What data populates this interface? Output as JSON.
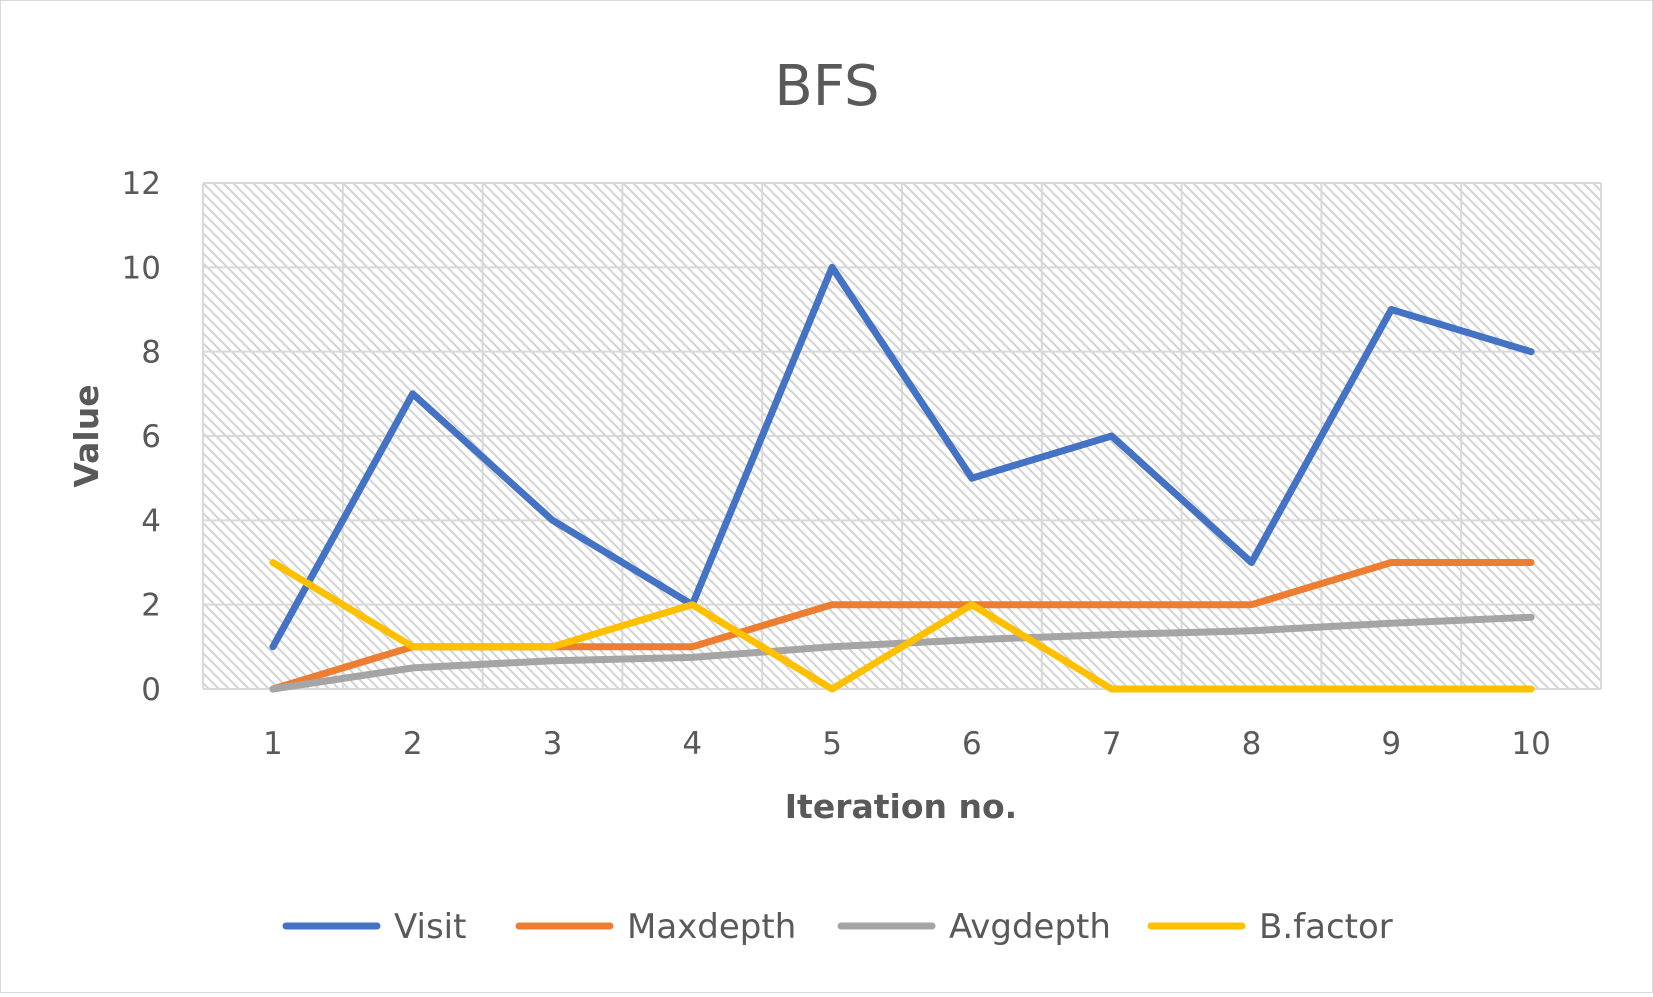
{
  "chart_data": {
    "type": "line",
    "title": "BFS",
    "xlabel": "Iteration no.",
    "ylabel": "Value",
    "categories": [
      "1",
      "2",
      "3",
      "4",
      "5",
      "6",
      "7",
      "8",
      "9",
      "10"
    ],
    "ylim": [
      0,
      12
    ],
    "yticks": [
      "0",
      "2",
      "4",
      "6",
      "8",
      "10",
      "12"
    ],
    "grid": true,
    "legend_position": "bottom",
    "series": [
      {
        "name": "Visit",
        "color": "#4472c4",
        "values": [
          1,
          7,
          4,
          2,
          10,
          5,
          6,
          3,
          9,
          8
        ]
      },
      {
        "name": "Maxdepth",
        "color": "#ed7d31",
        "values": [
          0,
          1,
          1,
          1,
          2,
          2,
          2,
          2,
          3,
          3
        ]
      },
      {
        "name": "Avgdepth",
        "color": "#a5a5a5",
        "values": [
          0,
          0.5,
          0.67,
          0.75,
          1,
          1.17,
          1.29,
          1.38,
          1.56,
          1.7
        ]
      },
      {
        "name": "B.factor",
        "color": "#ffc000",
        "values": [
          3,
          1,
          1,
          2,
          0,
          2,
          0,
          0,
          0,
          0
        ]
      }
    ]
  }
}
